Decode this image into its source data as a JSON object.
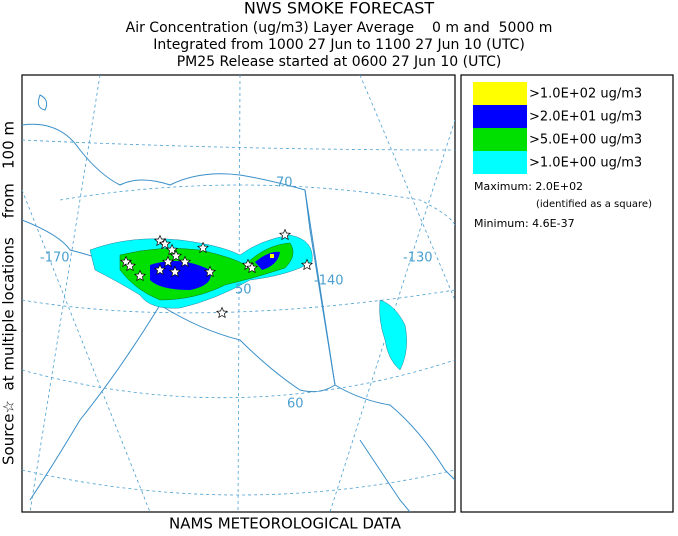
{
  "header": {
    "title": "NWS SMOKE FORECAST",
    "lines": [
      "Air Concentration (ug/m3) Layer Average    0 m and  5000 m",
      "Integrated from 1000 27 Jun to 1100 27 Jun 10 (UTC)",
      "PM25 Release started at 0600 27 Jun 10 (UTC)"
    ]
  },
  "side_label": "Source☆  at multiple locations    from   100 m",
  "footer": "NAMS METEOROLOGICAL DATA",
  "map": {
    "labels": [
      "70",
      "-170",
      "-140",
      "-130",
      "50",
      "60"
    ]
  },
  "legend": {
    "items": [
      {
        "label": ">1.0E+02 ug/m3",
        "color": "#ffff00"
      },
      {
        "label": ">2.0E+01 ug/m3",
        "color": "#0000ff"
      },
      {
        "label": ">5.0E+00 ug/m3",
        "color": "#00e000"
      },
      {
        "label": ">1.0E+00 ug/m3",
        "color": "#00ffff"
      }
    ],
    "maximum": "Maximum: 2.0E+02",
    "maximum_note": "(identified as a square)",
    "minimum": "Minimum: 4.6E-37"
  }
}
